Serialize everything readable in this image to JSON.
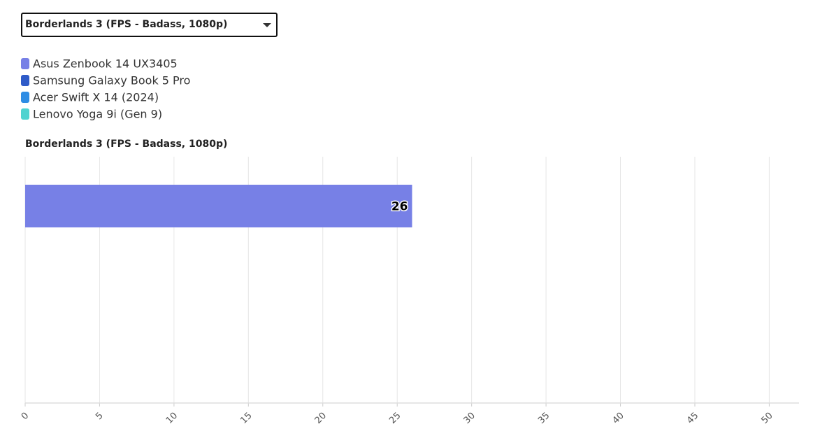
{
  "dropdown": {
    "selected": "Borderlands 3 (FPS - Badass, 1080p)"
  },
  "chart_data": {
    "type": "hbar",
    "title": "Borderlands 3 (FPS - Badass, 1080p)",
    "categories": [
      null
    ],
    "series": [
      {
        "name": "Asus Zenbook 14 UX3405",
        "color": "#7780e6",
        "values": [
          26
        ]
      },
      {
        "name": "Samsung Galaxy Book 5 Pro",
        "color": "#2f5bc8",
        "values": [
          null
        ]
      },
      {
        "name": "Acer Swift X 14 (2024)",
        "color": "#2f8de4",
        "values": [
          null
        ]
      },
      {
        "name": "Lenovo Yoga 9i (Gen 9)",
        "color": "#4fd3d0",
        "values": [
          null
        ]
      }
    ],
    "xlim": [
      0,
      52
    ],
    "xticks": [
      0,
      5,
      10,
      15,
      20,
      25,
      30,
      35,
      40,
      45,
      50
    ],
    "grid": true
  }
}
